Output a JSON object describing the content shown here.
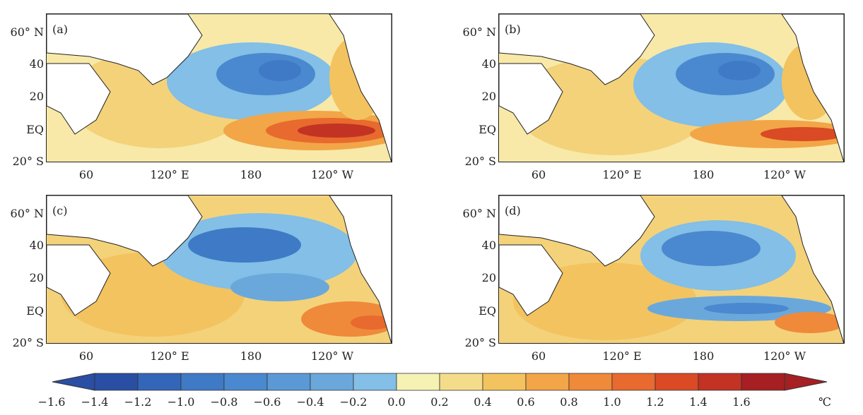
{
  "figure": {
    "lat_labels": [
      "60° N",
      "40",
      "20",
      "EQ",
      "20° S"
    ],
    "lon_labels": [
      "60",
      "120° E",
      "180",
      "120° W"
    ],
    "panels": [
      {
        "letter": "(a)"
      },
      {
        "letter": "(b)"
      },
      {
        "letter": "(c)"
      },
      {
        "letter": "(d)"
      }
    ]
  },
  "colorbar": {
    "labels": [
      "−1.6",
      "−1.4",
      "−1.2",
      "−1.0",
      "−0.8",
      "−0.6",
      "−0.4",
      "−0.2",
      "0.0",
      "0.2",
      "0.4",
      "0.6",
      "0.8",
      "1.0",
      "1.2",
      "1.4",
      "1.6"
    ],
    "unit": "℃",
    "colors": [
      "#2a4ea3",
      "#3366b8",
      "#3f7ac6",
      "#4a89cf",
      "#5a99d6",
      "#6aa8dc",
      "#83bfe6",
      "#f6f2b3",
      "#f4dd8a",
      "#f3c35f",
      "#f2a647",
      "#ef8a3a",
      "#e86a2e",
      "#d94a25",
      "#c23323",
      "#a61f22"
    ]
  }
}
